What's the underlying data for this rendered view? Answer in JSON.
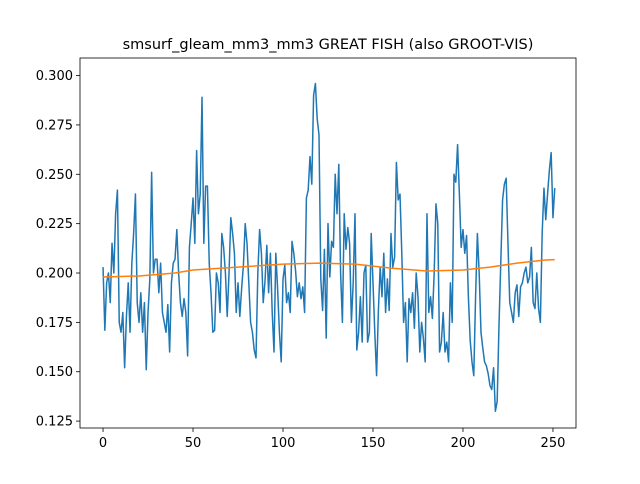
{
  "chart_data": {
    "type": "line",
    "title": "smsurf_gleam_mm3_mm3 GREAT FISH (also GROOT-VIS)",
    "xlim": [
      -12.8,
      262.8
    ],
    "xticks": [
      0,
      50,
      100,
      150,
      200,
      250
    ],
    "ylim": [
      0.1215,
      0.3089
    ],
    "yticks": [
      0.125,
      {
        "value": 0.15,
        "label": "0.150"
      },
      0.175,
      {
        "value": 0.2,
        "label": "0.200"
      },
      0.225,
      {
        "value": 0.25,
        "label": "0.250"
      },
      0.275,
      {
        "value": 0.3,
        "label": "0.300"
      }
    ],
    "series": [
      {
        "color": "#1f77b4",
        "x": [
          0,
          1,
          2,
          3,
          4,
          5,
          6,
          7,
          8,
          9,
          10,
          11,
          12,
          13,
          14,
          15,
          16,
          17,
          18,
          19,
          20,
          21,
          22,
          23,
          24,
          25,
          26,
          27,
          28,
          29,
          30,
          31,
          32,
          33,
          34,
          35,
          36,
          37,
          38,
          39,
          40,
          41,
          42,
          43,
          44,
          45,
          46,
          47,
          48,
          49,
          50,
          51,
          52,
          53,
          54,
          55,
          56,
          57,
          58,
          59,
          60,
          61,
          62,
          63,
          64,
          65,
          66,
          67,
          68,
          69,
          70,
          71,
          72,
          73,
          74,
          75,
          76,
          77,
          78,
          79,
          80,
          81,
          82,
          83,
          84,
          85,
          86,
          87,
          88,
          89,
          90,
          91,
          92,
          93,
          94,
          95,
          96,
          97,
          98,
          99,
          100,
          101,
          102,
          103,
          104,
          105,
          106,
          107,
          108,
          109,
          110,
          111,
          112,
          113,
          114,
          115,
          116,
          117,
          118,
          119,
          120,
          121,
          122,
          123,
          124,
          125,
          126,
          127,
          128,
          129,
          130,
          131,
          132,
          133,
          134,
          135,
          136,
          137,
          138,
          139,
          140,
          141,
          142,
          143,
          144,
          145,
          146,
          147,
          148,
          149,
          150,
          151,
          152,
          153,
          154,
          155,
          156,
          157,
          158,
          159,
          160,
          161,
          162,
          163,
          164,
          165,
          166,
          167,
          168,
          169,
          170,
          171,
          172,
          173,
          174,
          175,
          176,
          177,
          178,
          179,
          180,
          181,
          182,
          183,
          184,
          185,
          186,
          187,
          188,
          189,
          190,
          191,
          192,
          193,
          194,
          195,
          196,
          197,
          198,
          199,
          200,
          201,
          202,
          203,
          204,
          205,
          206,
          207,
          208,
          209,
          210,
          211,
          212,
          213,
          214,
          215,
          216,
          217,
          218,
          219,
          220,
          221,
          222,
          223,
          224,
          225,
          226,
          227,
          228,
          229,
          230,
          231,
          232,
          233,
          234,
          235,
          236,
          237,
          238,
          239,
          240,
          241,
          242,
          243,
          244,
          245,
          246,
          247,
          248,
          249,
          250,
          251
        ],
        "values": [
          0.203,
          0.171,
          0.195,
          0.2,
          0.185,
          0.215,
          0.2,
          0.23,
          0.242,
          0.175,
          0.17,
          0.18,
          0.152,
          0.178,
          0.195,
          0.17,
          0.205,
          0.22,
          0.24,
          0.185,
          0.175,
          0.19,
          0.17,
          0.185,
          0.151,
          0.18,
          0.197,
          0.251,
          0.2,
          0.207,
          0.207,
          0.19,
          0.205,
          0.18,
          0.175,
          0.17,
          0.184,
          0.16,
          0.195,
          0.205,
          0.207,
          0.222,
          0.2,
          0.185,
          0.178,
          0.187,
          0.18,
          0.158,
          0.213,
          0.225,
          0.238,
          0.215,
          0.262,
          0.23,
          0.24,
          0.289,
          0.215,
          0.244,
          0.244,
          0.205,
          0.19,
          0.17,
          0.171,
          0.2,
          0.195,
          0.18,
          0.22,
          0.213,
          0.2,
          0.178,
          0.2,
          0.228,
          0.22,
          0.21,
          0.18,
          0.195,
          0.178,
          0.192,
          0.204,
          0.225,
          0.215,
          0.195,
          0.175,
          0.17,
          0.161,
          0.157,
          0.2,
          0.222,
          0.21,
          0.185,
          0.196,
          0.214,
          0.19,
          0.21,
          0.18,
          0.16,
          0.21,
          0.192,
          0.17,
          0.155,
          0.197,
          0.204,
          0.185,
          0.19,
          0.18,
          0.216,
          0.21,
          0.201,
          0.188,
          0.195,
          0.187,
          0.193,
          0.18,
          0.238,
          0.242,
          0.259,
          0.245,
          0.29,
          0.296,
          0.278,
          0.27,
          0.197,
          0.181,
          0.212,
          0.167,
          0.225,
          0.198,
          0.216,
          0.213,
          0.25,
          0.23,
          0.255,
          0.2,
          0.175,
          0.23,
          0.212,
          0.223,
          0.215,
          0.175,
          0.195,
          0.23,
          0.161,
          0.17,
          0.188,
          0.165,
          0.2,
          0.204,
          0.165,
          0.17,
          0.22,
          0.195,
          0.17,
          0.148,
          0.181,
          0.203,
          0.188,
          0.21,
          0.18,
          0.197,
          0.181,
          0.22,
          0.203,
          0.208,
          0.256,
          0.237,
          0.24,
          0.21,
          0.175,
          0.185,
          0.155,
          0.187,
          0.18,
          0.19,
          0.172,
          0.2,
          0.188,
          0.16,
          0.175,
          0.167,
          0.155,
          0.23,
          0.18,
          0.188,
          0.177,
          0.2,
          0.235,
          0.225,
          0.16,
          0.165,
          0.18,
          0.16,
          0.165,
          0.155,
          0.195,
          0.175,
          0.25,
          0.246,
          0.265,
          0.24,
          0.213,
          0.222,
          0.21,
          0.219,
          0.188,
          0.166,
          0.155,
          0.148,
          0.188,
          0.22,
          0.2,
          0.17,
          0.162,
          0.155,
          0.153,
          0.149,
          0.143,
          0.141,
          0.152,
          0.13,
          0.135,
          0.173,
          0.205,
          0.237,
          0.245,
          0.248,
          0.215,
          0.185,
          0.18,
          0.175,
          0.19,
          0.194,
          0.178,
          0.193,
          0.195,
          0.2,
          0.203,
          0.195,
          0.198,
          0.213,
          0.185,
          0.182,
          0.2,
          0.182,
          0.175,
          0.22,
          0.243,
          0.227,
          0.24,
          0.252,
          0.261,
          0.228,
          0.243
        ]
      },
      {
        "color": "#ff7f0e",
        "x": [
          0,
          20,
          40,
          50,
          75,
          100,
          120,
          140,
          160,
          180,
          200,
          215,
          230,
          245,
          251
        ],
        "values": [
          0.198,
          0.1985,
          0.2,
          0.2015,
          0.203,
          0.2045,
          0.205,
          0.2045,
          0.2025,
          0.201,
          0.2015,
          0.203,
          0.205,
          0.2065,
          0.2068
        ]
      }
    ]
  }
}
